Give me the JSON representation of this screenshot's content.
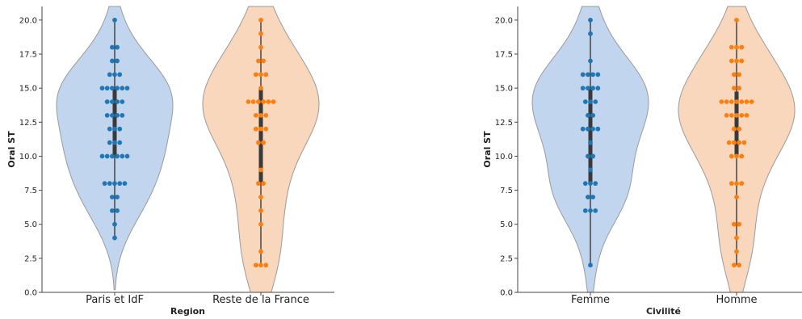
{
  "chart_data": [
    {
      "type": "violin+swarm",
      "xlabel": "Region",
      "ylabel": "Oral ST",
      "ylim": [
        0,
        21
      ],
      "yticks": [
        "0.0",
        "2.5",
        "5.0",
        "7.5",
        "10.0",
        "12.5",
        "15.0",
        "17.5",
        "20.0"
      ],
      "categories": [
        "Paris et IdF",
        "Reste de la France"
      ],
      "series": [
        {
          "values": [
            20,
            18,
            18,
            17,
            17,
            16,
            16,
            16,
            15,
            15,
            15,
            15,
            15,
            15,
            14,
            14,
            14,
            14,
            13,
            13,
            13,
            13,
            12,
            12,
            12,
            11,
            11,
            11,
            10,
            10,
            10,
            10,
            10,
            10,
            8,
            8,
            8,
            8,
            8,
            7,
            7,
            6,
            6,
            5,
            4
          ],
          "color": "#1f77b4",
          "violin_color": "#aec7e8"
        },
        {
          "values": [
            20,
            19,
            18,
            17,
            17,
            16,
            16,
            16,
            15,
            14,
            14,
            14,
            14,
            14,
            14,
            13,
            13,
            13,
            12,
            12,
            12,
            11,
            11,
            9,
            8,
            8,
            7,
            6,
            5,
            3,
            2,
            2,
            2
          ],
          "color": "#ff7f0e",
          "violin_color": "#f5c9a5"
        }
      ]
    },
    {
      "type": "violin+swarm",
      "xlabel": "Civilité",
      "ylabel": "Oral ST",
      "ylim": [
        0,
        21
      ],
      "yticks": [
        "0.0",
        "2.5",
        "5.0",
        "7.5",
        "10.0",
        "12.5",
        "15.0",
        "17.5",
        "20.0"
      ],
      "categories": [
        "Femme",
        "Homme"
      ],
      "series": [
        {
          "values": [
            20,
            19,
            17,
            16,
            16,
            16,
            16,
            15,
            15,
            15,
            15,
            14,
            14,
            14,
            13,
            13,
            12,
            12,
            12,
            12,
            11,
            10,
            10,
            9,
            8,
            8,
            8,
            7,
            7,
            6,
            6,
            6,
            2
          ],
          "color": "#1f77b4",
          "violin_color": "#aec7e8"
        },
        {
          "values": [
            20,
            18,
            18,
            18,
            17,
            17,
            17,
            16,
            16,
            15,
            15,
            14,
            14,
            14,
            14,
            14,
            14,
            14,
            13,
            13,
            13,
            13,
            13,
            12,
            12,
            11,
            11,
            11,
            11,
            10,
            10,
            10,
            8,
            8,
            8,
            7,
            5,
            5,
            4,
            3,
            2,
            2
          ],
          "color": "#ff7f0e",
          "violin_color": "#f5c9a5"
        }
      ]
    }
  ]
}
